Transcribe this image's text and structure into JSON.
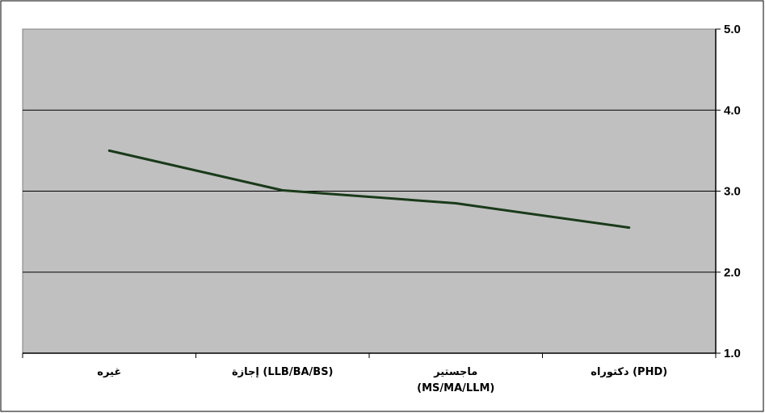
{
  "chart_data": {
    "type": "line",
    "title": "",
    "xlabel": "",
    "ylabel": "",
    "categories": [
      [
        "غيره"
      ],
      [
        "إجازة (LLB/BA/BS)"
      ],
      [
        "ماجستير",
        "(MS/MA/LLM)"
      ],
      [
        "دكتوراه (PHD)"
      ]
    ],
    "series": [
      {
        "values": [
          3.5,
          3.01,
          2.85,
          2.55
        ]
      }
    ],
    "ylim": [
      1.0,
      5.0
    ],
    "yticks": [
      "1.0",
      "2.0",
      "3.0",
      "4.0",
      "5.0"
    ],
    "y_axis_side": "right",
    "grid": true,
    "legend": "none",
    "colors": {
      "plot_background": "#c0c0c0",
      "line": "#1a3a1a",
      "gridline": "#000000",
      "frame": "#000000",
      "axis": "#000000"
    }
  }
}
